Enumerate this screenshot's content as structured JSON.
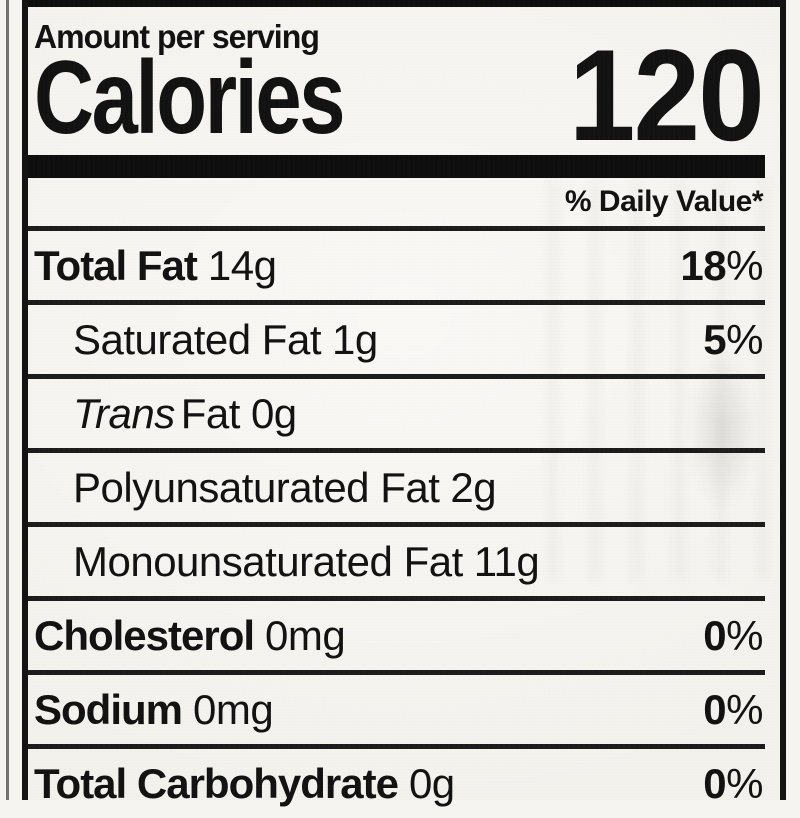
{
  "percent_sign": "%",
  "header": {
    "amount_per_serving": "Amount per serving",
    "calories_label": "Calories",
    "calories_value": "120",
    "daily_value_note": "% Daily Value*"
  },
  "rows": [
    {
      "name": "Total Fat",
      "amount": "14g",
      "dv": "18"
    },
    {
      "name": "Saturated Fat",
      "amount": "1g",
      "dv": "5"
    },
    {
      "name_italic": "Trans",
      "name": "Fat",
      "amount": "0g"
    },
    {
      "name": "Polyunsaturated Fat",
      "amount": "2g"
    },
    {
      "name": "Monounsaturated Fat",
      "amount": "11g"
    },
    {
      "name": "Cholesterol",
      "amount": "0mg",
      "dv": "0"
    },
    {
      "name": "Sodium",
      "amount": "0mg",
      "dv": "0"
    },
    {
      "name": "Total Carbohydrate",
      "amount": "0g",
      "dv": "0"
    }
  ],
  "colors": {
    "ink": "#121212",
    "paper": "#f3f1ec",
    "rule": "#1c1c1c"
  }
}
